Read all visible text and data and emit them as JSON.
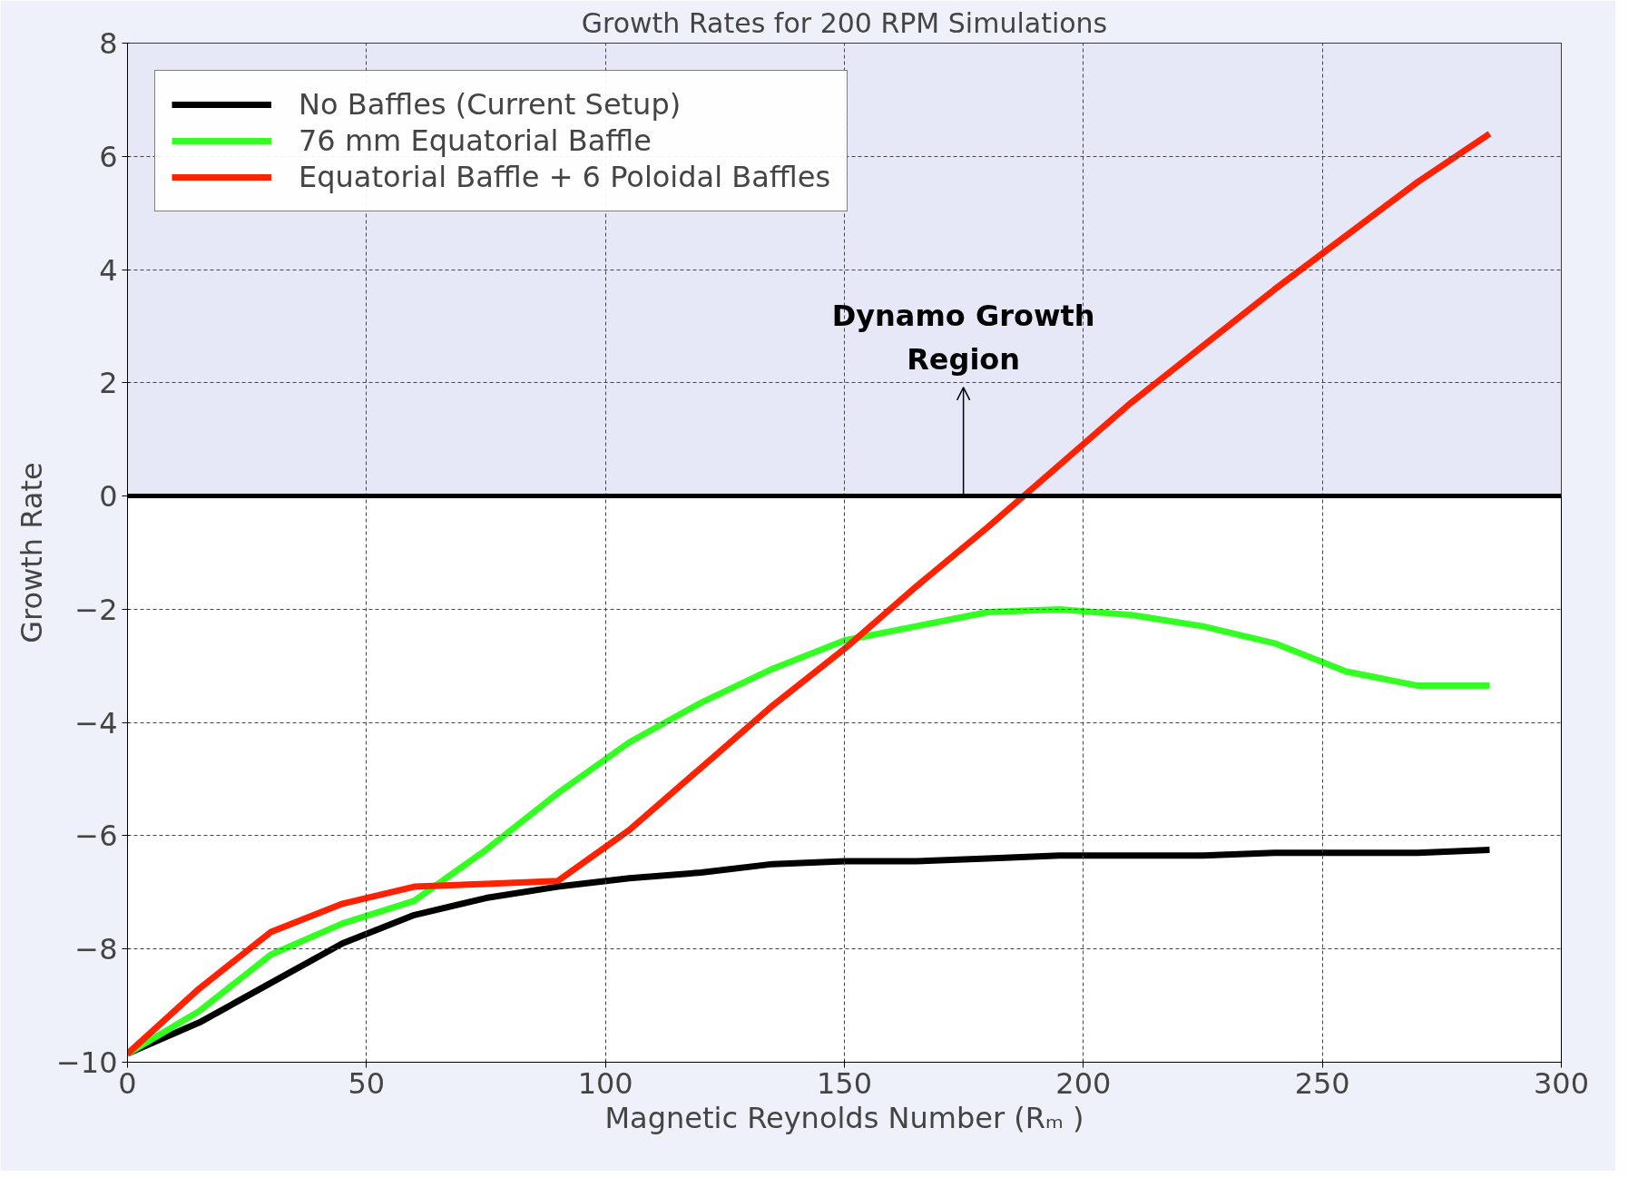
{
  "chart_data": {
    "type": "line",
    "title": "Growth Rates for 200 RPM Simulations",
    "xlabel": "Magnetic Reynolds Number (Rₘ )",
    "ylabel": "Growth Rate",
    "x": [
      0,
      15,
      30,
      45,
      60,
      75,
      90,
      105,
      120,
      135,
      150,
      165,
      180,
      195,
      210,
      225,
      240,
      255,
      270,
      285
    ],
    "series": [
      {
        "name": "No Baffles (Current Setup)",
        "color": "#000000",
        "values": [
          -9.85,
          -9.3,
          -8.6,
          -7.9,
          -7.4,
          -7.1,
          -6.9,
          -6.75,
          -6.65,
          -6.5,
          -6.45,
          -6.45,
          -6.4,
          -6.35,
          -6.35,
          -6.35,
          -6.3,
          -6.3,
          -6.3,
          -6.25
        ]
      },
      {
        "name": "76 mm Equatorial Baffle",
        "color": "#33ff22",
        "values": [
          -9.85,
          -9.1,
          -8.1,
          -7.55,
          -7.15,
          -6.25,
          -5.25,
          -4.35,
          -3.65,
          -3.05,
          -2.55,
          -2.3,
          -2.05,
          -2.0,
          -2.1,
          -2.3,
          -2.6,
          -3.1,
          -3.35,
          -3.35
        ]
      },
      {
        "name": "Equatorial Baffle + 6 Poloidal Baffles",
        "color": "#ff2200",
        "values": [
          -9.85,
          -8.7,
          -7.7,
          -7.2,
          -6.9,
          -6.85,
          -6.8,
          -5.9,
          -4.8,
          -3.7,
          -2.7,
          -1.6,
          -0.55,
          0.55,
          1.65,
          2.65,
          3.65,
          4.6,
          5.55,
          6.4
        ]
      }
    ],
    "xlim": [
      0,
      300
    ],
    "xticks": [
      0,
      50,
      100,
      150,
      200,
      250,
      300
    ],
    "ylim": [
      -10,
      8
    ],
    "yticks": [
      -10,
      -8,
      -6,
      -4,
      -2,
      0,
      2,
      4,
      6,
      8
    ],
    "grid": true,
    "legend": "top left",
    "line_style": "solid",
    "marker": "none",
    "bands": [
      {
        "axis": "y",
        "from": 0,
        "to": 8,
        "label": "Dynamo Growth\nRegion",
        "color": "#e6e8f8"
      }
    ],
    "ref_lines": [
      {
        "axis": "y",
        "value": 0,
        "label": null,
        "color": "#000000"
      }
    ]
  }
}
